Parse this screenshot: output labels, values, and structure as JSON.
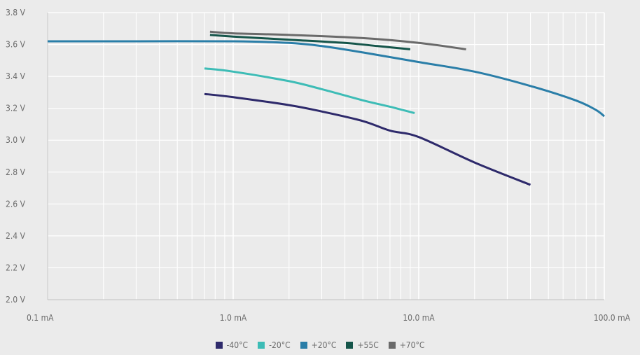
{
  "chart_data": {
    "type": "line",
    "title": "",
    "xlabel": "",
    "ylabel": "",
    "xscale": "log",
    "xlim": [
      0.1,
      100.0
    ],
    "ylim": [
      2.0,
      3.8
    ],
    "grid": true,
    "legend_position": "bottom",
    "x_ticks": [
      {
        "value": 0.1,
        "label": "0.1 mA"
      },
      {
        "value": 1.0,
        "label": "1.0 mA"
      },
      {
        "value": 10.0,
        "label": "10.0 mA"
      },
      {
        "value": 100.0,
        "label": "100.0 mA"
      }
    ],
    "y_ticks": [
      {
        "value": 2.0,
        "label": "2.0 V"
      },
      {
        "value": 2.2,
        "label": "2.2 V"
      },
      {
        "value": 2.4,
        "label": "2.4 V"
      },
      {
        "value": 2.6,
        "label": "2.6 V"
      },
      {
        "value": 2.8,
        "label": "2.8 V"
      },
      {
        "value": 3.0,
        "label": "3.0 V"
      },
      {
        "value": 3.2,
        "label": "3.2 V"
      },
      {
        "value": 3.4,
        "label": "3.4 V"
      },
      {
        "value": 3.6,
        "label": "3.6 V"
      },
      {
        "value": 3.8,
        "label": "3.8 V"
      }
    ],
    "series": [
      {
        "name": "-40°C",
        "color": "#2e2a6b",
        "points": [
          [
            0.7,
            3.29
          ],
          [
            1.0,
            3.27
          ],
          [
            2.0,
            3.22
          ],
          [
            3.0,
            3.18
          ],
          [
            5.0,
            3.12
          ],
          [
            7.0,
            3.06
          ],
          [
            10.0,
            3.02
          ],
          [
            20.0,
            2.86
          ],
          [
            40.0,
            2.72
          ]
        ]
      },
      {
        "name": "-20°C",
        "color": "#3dbcb6",
        "points": [
          [
            0.7,
            3.45
          ],
          [
            1.0,
            3.43
          ],
          [
            2.0,
            3.37
          ],
          [
            3.0,
            3.32
          ],
          [
            5.0,
            3.25
          ],
          [
            7.0,
            3.21
          ],
          [
            9.5,
            3.17
          ]
        ]
      },
      {
        "name": "+20°C",
        "color": "#2a7ea8",
        "points": [
          [
            0.1,
            3.62
          ],
          [
            0.3,
            3.62
          ],
          [
            1.0,
            3.62
          ],
          [
            2.0,
            3.61
          ],
          [
            3.0,
            3.59
          ],
          [
            5.0,
            3.55
          ],
          [
            10.0,
            3.49
          ],
          [
            20.0,
            3.43
          ],
          [
            40.0,
            3.34
          ],
          [
            70.0,
            3.25
          ],
          [
            90.0,
            3.19
          ],
          [
            105.0,
            3.15
          ]
        ]
      },
      {
        "name": "+55C",
        "color": "#15554a",
        "points": [
          [
            0.75,
            3.66
          ],
          [
            1.0,
            3.65
          ],
          [
            2.0,
            3.63
          ],
          [
            4.0,
            3.61
          ],
          [
            6.0,
            3.59
          ],
          [
            9.0,
            3.57
          ]
        ]
      },
      {
        "name": "+70°C",
        "color": "#6a6a6a",
        "points": [
          [
            0.75,
            3.68
          ],
          [
            1.0,
            3.67
          ],
          [
            2.0,
            3.66
          ],
          [
            5.0,
            3.64
          ],
          [
            10.0,
            3.61
          ],
          [
            18.0,
            3.57
          ]
        ]
      }
    ]
  }
}
